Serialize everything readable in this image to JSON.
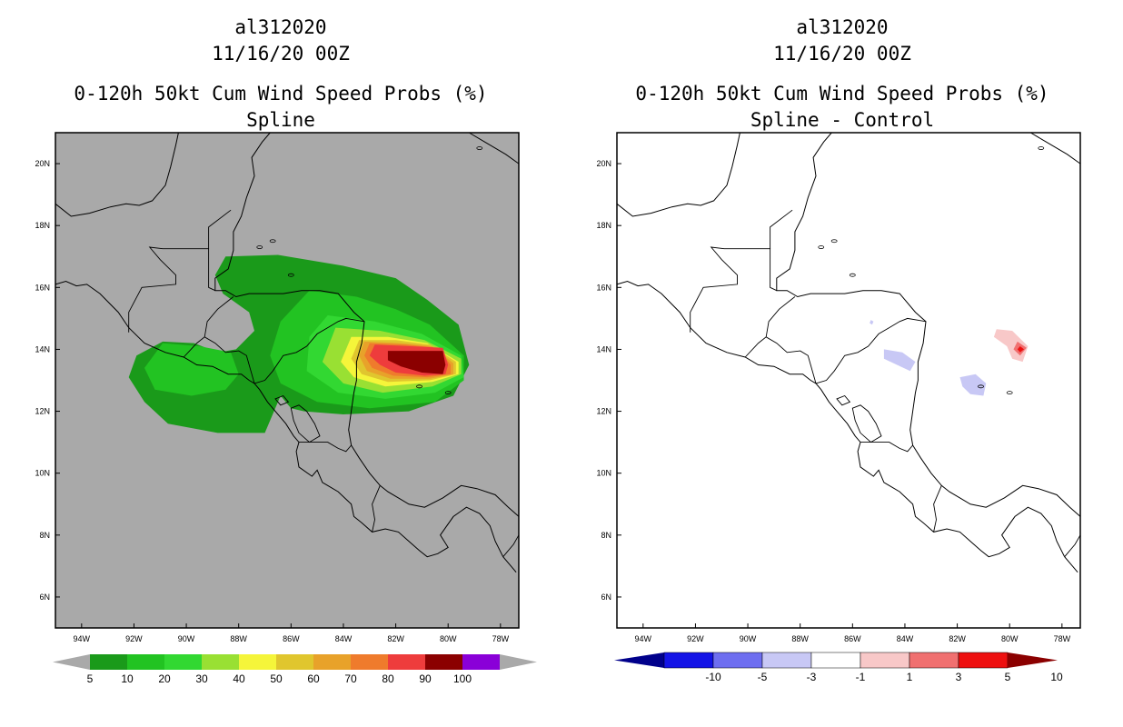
{
  "left": {
    "storm_id": "al312020",
    "datetime": "11/16/20 00Z",
    "product": "0-120h 50kt Cum Wind Speed Probs (%)",
    "subtitle": "Spline",
    "colorbar": {
      "labels": [
        "5",
        "10",
        "20",
        "30",
        "40",
        "50",
        "60",
        "70",
        "80",
        "90",
        "100"
      ],
      "colors": [
        "#1a9a1a",
        "#22c322",
        "#32d832",
        "#99e033",
        "#f5f53a",
        "#e0c62e",
        "#e8a22a",
        "#ef7b2c",
        "#ee3c3c",
        "#8b0000",
        "#8a00d8"
      ]
    }
  },
  "right": {
    "storm_id": "al312020",
    "datetime": "11/16/20 00Z",
    "product": "0-120h 50kt Cum Wind Speed Probs (%)",
    "subtitle": "Spline - Control",
    "colorbar": {
      "labels": [
        "-10",
        "-5",
        "-3",
        "-1",
        "1",
        "3",
        "5",
        "10"
      ],
      "colors": [
        "#00008b",
        "#1414e6",
        "#6e6ef0",
        "#c8c8f5",
        "#ffffff",
        "#f8c8c8",
        "#f07070",
        "#ee1010",
        "#8b0000"
      ]
    }
  },
  "map": {
    "lon_labels": [
      "94W",
      "92W",
      "90W",
      "88W",
      "86W",
      "84W",
      "82W",
      "80W",
      "78W"
    ],
    "lat_labels": [
      "20N",
      "18N",
      "16N",
      "14N",
      "12N",
      "10N",
      "8N",
      "6N"
    ],
    "lon_range": [
      -95,
      -77.3
    ],
    "lat_range": [
      5,
      21
    ],
    "ocean_color": "#a9a9a9"
  },
  "chart_data": {
    "type": "heatmap",
    "title": "0-120h 50kt Cum Wind Speed Probs (%)",
    "panels": [
      {
        "name": "Spline",
        "units": "%",
        "contour_levels": [
          5,
          10,
          20,
          30,
          40,
          50,
          60,
          70,
          80,
          90,
          100
        ],
        "max_region_center": {
          "lon": -80.5,
          "lat": 13.6
        },
        "max_probability_bin": "90-100"
      },
      {
        "name": "Spline - Control",
        "units": "%",
        "contour_levels": [
          -10,
          -5,
          -3,
          -1,
          1,
          3,
          5,
          10
        ],
        "positive_max_center": {
          "lon": -79.5,
          "lat": 14.0
        },
        "negative_regions": [
          {
            "lon": -84.2,
            "lat": 13.7
          },
          {
            "lon": -81.5,
            "lat": 12.9
          }
        ]
      }
    ]
  }
}
